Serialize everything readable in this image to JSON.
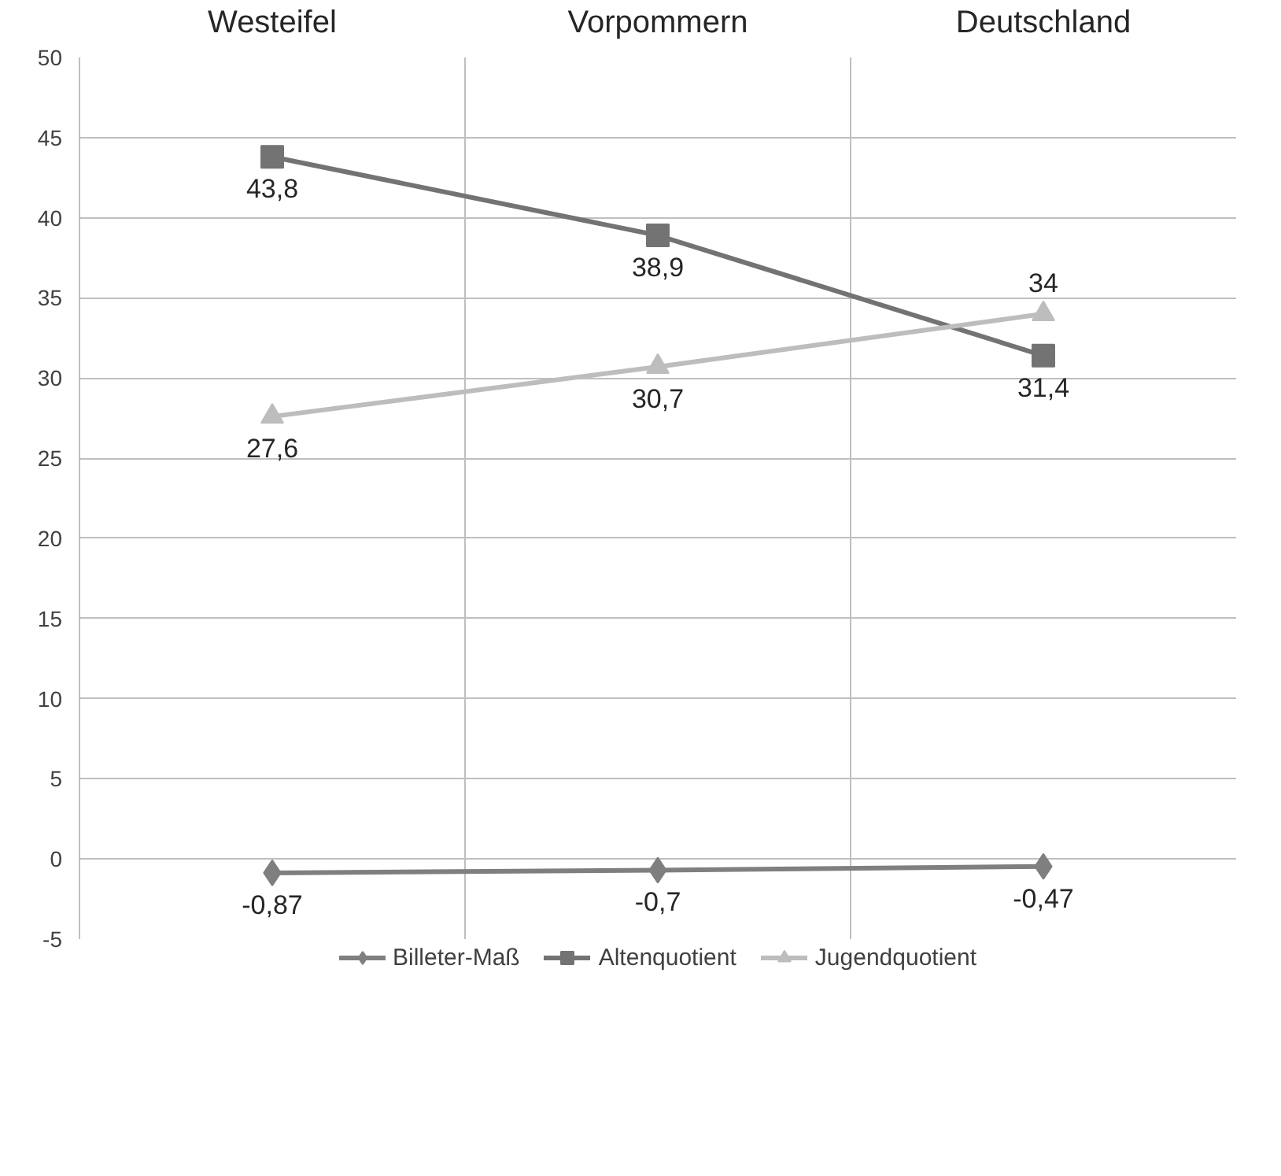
{
  "chart_data": {
    "type": "line",
    "categories": [
      "Westeifel",
      "Vorpommern",
      "Deutschland"
    ],
    "series": [
      {
        "name": "Billeter-Maß",
        "color": "#7f7f7f",
        "marker": "diamond",
        "values": [
          -0.87,
          -0.7,
          -0.47
        ],
        "value_labels": [
          "-0,87",
          "-0,7",
          "-0,47"
        ]
      },
      {
        "name": "Altenquotient",
        "color": "#737373",
        "marker": "square",
        "values": [
          43.8,
          38.9,
          31.4
        ],
        "value_labels": [
          "43,8",
          "38,9",
          "31,4"
        ]
      },
      {
        "name": "Jugendquotient",
        "color": "#bdbdbd",
        "marker": "triangle",
        "values": [
          27.6,
          30.7,
          34
        ],
        "value_labels": [
          "27,6",
          "30,7",
          "34"
        ]
      }
    ],
    "ylim": [
      -5,
      50
    ],
    "yticks": [
      -5,
      0,
      5,
      10,
      15,
      20,
      25,
      30,
      35,
      40,
      45,
      50
    ],
    "grid": true,
    "legend": "bottom"
  }
}
